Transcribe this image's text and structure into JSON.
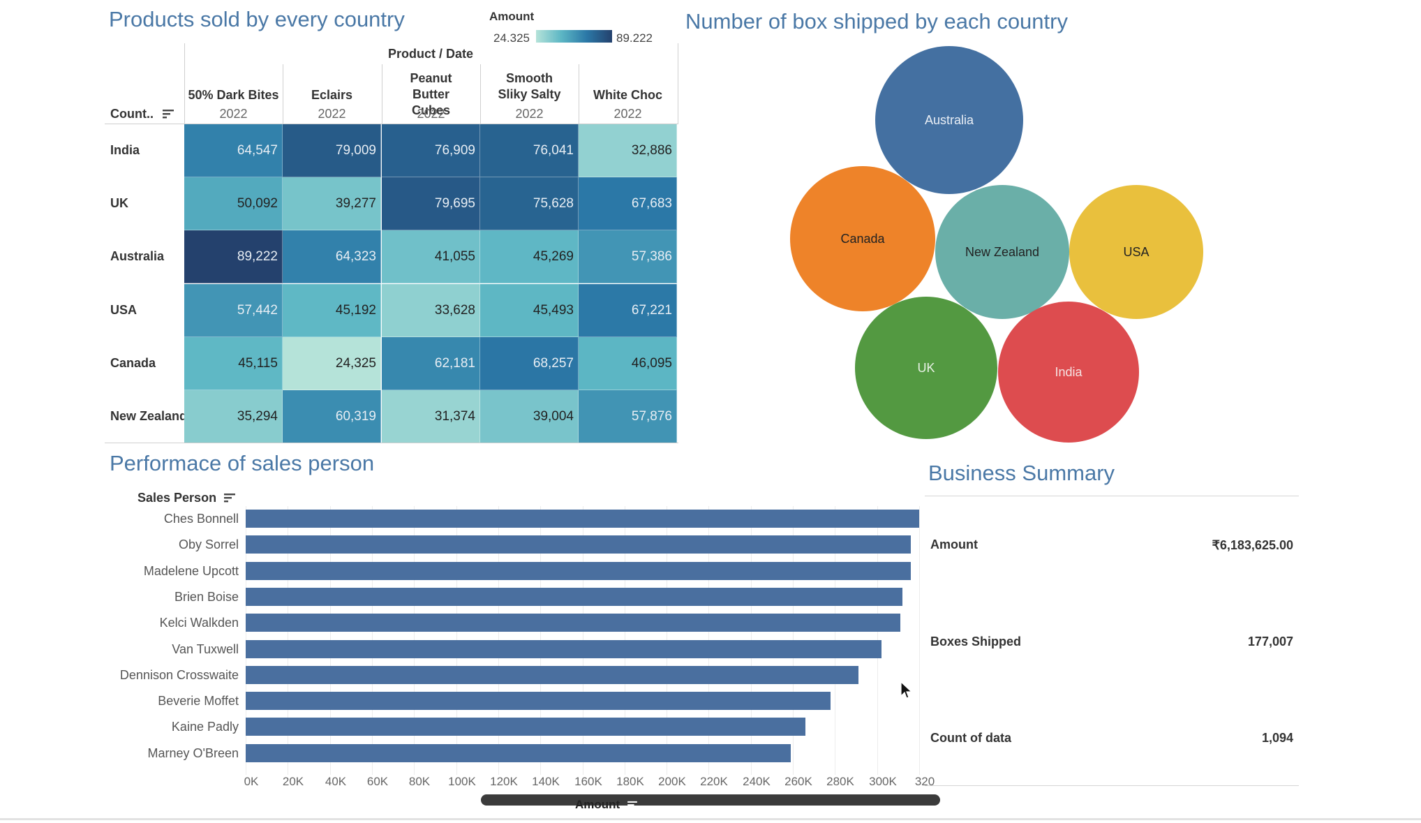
{
  "heatmap": {
    "title": "Products sold by every country",
    "legend_title": "Amount",
    "legend_min": "24.325",
    "legend_max": "89.222",
    "header_label": "Product / Date",
    "row_header": "Count..",
    "columns": [
      {
        "name": "50% Dark Bites",
        "year": "2022"
      },
      {
        "name": "Eclairs",
        "year": "2022"
      },
      {
        "name": "Peanut Butter Cubes",
        "year": "2022"
      },
      {
        "name": "Smooth Sliky Salty",
        "year": "2022"
      },
      {
        "name": "White Choc",
        "year": "2022"
      }
    ],
    "rows": [
      {
        "country": "India",
        "values": [
          64547,
          79009,
          76909,
          76041,
          32886
        ],
        "labels": [
          "64,547",
          "79,009",
          "76,909",
          "76,041",
          "32,886"
        ]
      },
      {
        "country": "UK",
        "values": [
          50092,
          39277,
          79695,
          75628,
          67683
        ],
        "labels": [
          "50,092",
          "39,277",
          "79,695",
          "75,628",
          "67,683"
        ]
      },
      {
        "country": "Australia",
        "values": [
          89222,
          64323,
          41055,
          45269,
          57386
        ],
        "labels": [
          "89,222",
          "64,323",
          "41,055",
          "45,269",
          "57,386"
        ]
      },
      {
        "country": "USA",
        "values": [
          57442,
          45192,
          33628,
          45493,
          67221
        ],
        "labels": [
          "57,442",
          "45,192",
          "33,628",
          "45,493",
          "67,221"
        ]
      },
      {
        "country": "Canada",
        "values": [
          45115,
          24325,
          62181,
          68257,
          46095
        ],
        "labels": [
          "45,115",
          "24,325",
          "62,181",
          "68,257",
          "46,095"
        ]
      },
      {
        "country": "New Zealand",
        "values": [
          35294,
          60319,
          31374,
          39004,
          57876
        ],
        "labels": [
          "35,294",
          "60,319",
          "31,374",
          "39,004",
          "57,876"
        ]
      }
    ]
  },
  "bubbles": {
    "title": "Number of box shipped by each country",
    "items": [
      {
        "label": "Australia",
        "color": "#4470a1",
        "text_color": "#e9eef5"
      },
      {
        "label": "Canada",
        "color": "#ee8329",
        "text_color": "#222222"
      },
      {
        "label": "New Zealand",
        "color": "#6aafa8",
        "text_color": "#222222"
      },
      {
        "label": "USA",
        "color": "#e9c03d",
        "text_color": "#222222"
      },
      {
        "label": "UK",
        "color": "#539941",
        "text_color": "#e9f2e6"
      },
      {
        "label": "India",
        "color": "#dd4c4f",
        "text_color": "#f6e3e3"
      }
    ]
  },
  "chart_data": {
    "type": "bar",
    "title": "Performace of sales person",
    "ylabel": "Sales Person",
    "xlabel": "Amount",
    "categories": [
      "Ches Bonnell",
      "Oby Sorrel",
      "Madelene Upcott",
      "Brien Boise",
      "Kelci Walkden",
      "Van Tuxwell",
      "Dennison Crosswaite",
      "Beverie Moffet",
      "Kaine Padly",
      "Marney O'Breen"
    ],
    "values": [
      320000,
      316000,
      316000,
      312000,
      311000,
      302000,
      291000,
      278000,
      266000,
      259000
    ],
    "xticks": [
      "0K",
      "20K",
      "40K",
      "60K",
      "80K",
      "100K",
      "120K",
      "140K",
      "160K",
      "180K",
      "200K",
      "220K",
      "240K",
      "260K",
      "280K",
      "300K",
      "320"
    ],
    "xlim": [
      0,
      320000
    ],
    "color": "#4a6f9f",
    "grid": true
  },
  "summary": {
    "title": "Business Summary",
    "items": [
      {
        "label": "Amount",
        "value": "₹6,183,625.00"
      },
      {
        "label": "Boxes Shipped",
        "value": "177,007"
      },
      {
        "label": "Count of data",
        "value": "1,094"
      }
    ]
  }
}
